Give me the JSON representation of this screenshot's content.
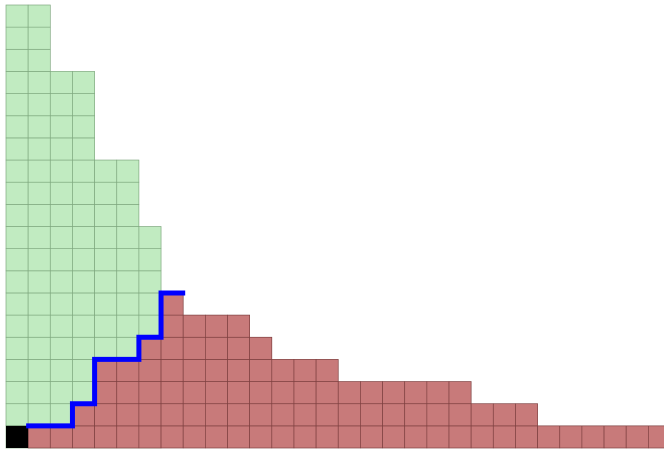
{
  "grid": {
    "rows": 20,
    "columns": 30,
    "green_heights": [
      20,
      20,
      17,
      17,
      13,
      13,
      10
    ],
    "red_heights": [
      0,
      1,
      1,
      2,
      4,
      4,
      5,
      7,
      6,
      6,
      6,
      5,
      4,
      4,
      4,
      3,
      3,
      3,
      3,
      3,
      3,
      2,
      2,
      2,
      1,
      1,
      1,
      1,
      1,
      1
    ]
  }
}
